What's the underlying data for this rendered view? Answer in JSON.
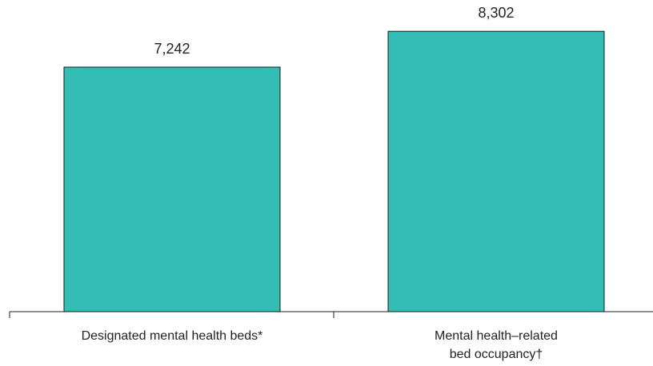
{
  "chart_data": {
    "type": "bar",
    "categories": [
      [
        "Designated mental health beds*"
      ],
      [
        "Mental health–related",
        "bed occupancy†"
      ]
    ],
    "values": [
      7242,
      8302
    ],
    "value_labels": [
      "7,242",
      "8,302"
    ],
    "bar_color": "#33bdb5",
    "bar_edge_color": "#1a1a1a",
    "ylim": [
      0,
      9000
    ],
    "title": "",
    "xlabel": "",
    "ylabel": "",
    "grid": false
  }
}
